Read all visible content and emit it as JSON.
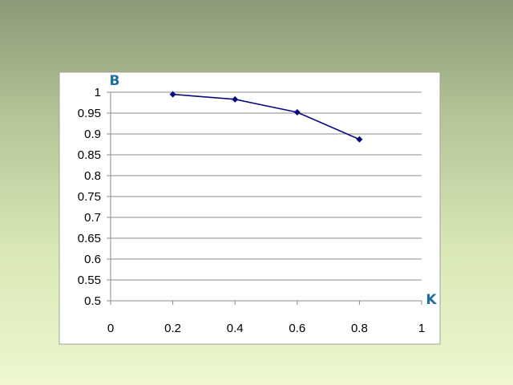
{
  "chart_data": {
    "type": "line",
    "title": "",
    "xlabel": "K",
    "ylabel": "B",
    "x": [
      0.2,
      0.4,
      0.6,
      0.8
    ],
    "series": [
      {
        "values": [
          0.995,
          0.983,
          0.952,
          0.887
        ]
      }
    ],
    "xlim": [
      0,
      1
    ],
    "ylim": [
      0.5,
      1
    ],
    "xticks": [
      "0",
      "0.2",
      "0.4",
      "0.6",
      "0.8",
      "1"
    ],
    "yticks": [
      "0.5",
      "0.55",
      "0.6",
      "0.65",
      "0.7",
      "0.75",
      "0.8",
      "0.85",
      "0.9",
      "0.95",
      "1"
    ],
    "grid": true,
    "legend": "none",
    "colors": {
      "series": "#0a0a80",
      "axis_titles": "#1f6f9e",
      "grid": "#888888",
      "plot_background": "#ffffff"
    }
  }
}
